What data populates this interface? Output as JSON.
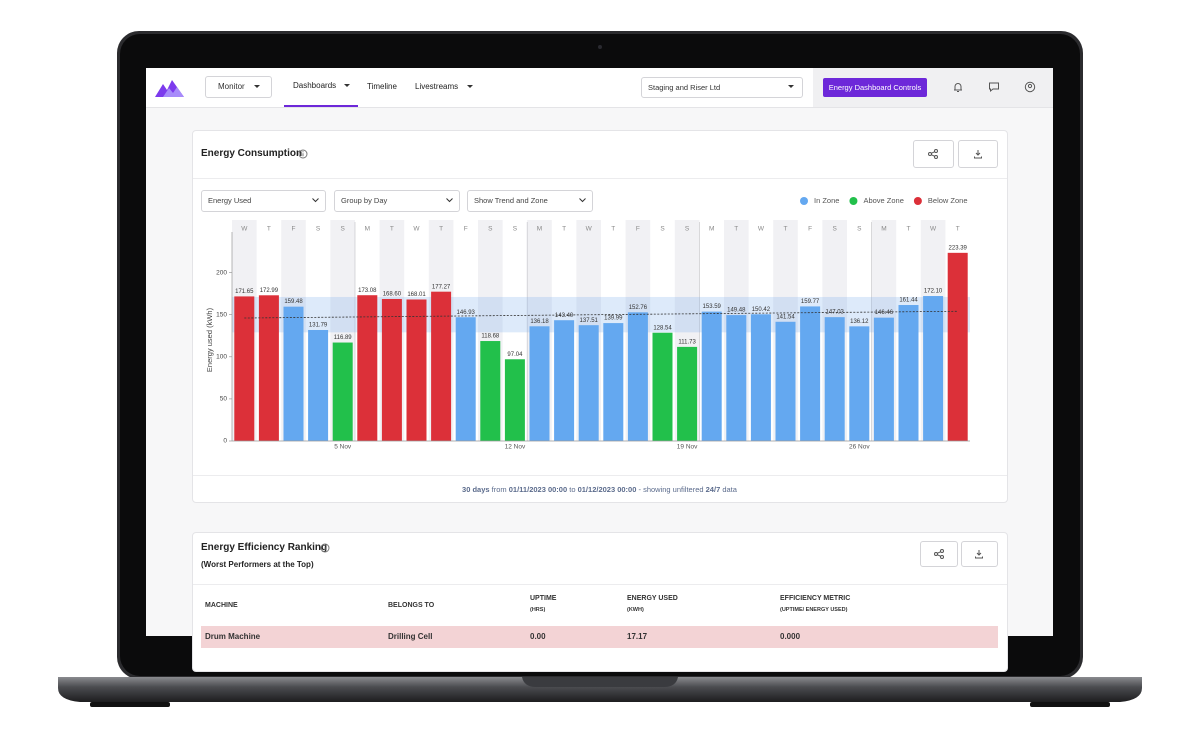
{
  "nav": {
    "monitor": "Monitor",
    "tabs": [
      "Dashboards",
      "Timeline",
      "Livestreams"
    ],
    "site": "Staging and Riser Ltd",
    "controls": "Energy Dashboard Controls"
  },
  "consumption_card": {
    "title": "Energy Consumption",
    "filters": [
      "Energy Used",
      "Group by Day",
      "Show Trend and Zone"
    ],
    "chart_data": {
      "type": "bar",
      "y_label": "Energy used (kWh)",
      "weekdays": [
        "W",
        "T",
        "F",
        "S",
        "S",
        "M",
        "T",
        "W",
        "T",
        "F",
        "S",
        "S",
        "M",
        "T",
        "W",
        "T",
        "F",
        "S",
        "S",
        "M",
        "T",
        "W",
        "T",
        "F",
        "S",
        "S",
        "M",
        "T",
        "W",
        "T"
      ],
      "categories": [
        null,
        null,
        null,
        null,
        "5 Nov",
        null,
        null,
        null,
        null,
        null,
        null,
        "12 Nov",
        null,
        null,
        null,
        null,
        null,
        null,
        "19 Nov",
        null,
        null,
        null,
        null,
        null,
        null,
        "26 Nov",
        null,
        null,
        null,
        null
      ],
      "series": [
        {
          "name": "In Zone",
          "color": "#64a8f0",
          "values": [
            null,
            null,
            159.48,
            131.79,
            null,
            null,
            null,
            null,
            null,
            146.93,
            null,
            null,
            136.18,
            143.4,
            137.51,
            139.99,
            152.76,
            null,
            null,
            153.59,
            149.48,
            150.42,
            141.54,
            159.77,
            147.03,
            136.12,
            146.46,
            161.44,
            172.1,
            null
          ],
          "value_labels": [
            null,
            null,
            "159.48",
            "131.79",
            null,
            null,
            null,
            null,
            null,
            "146.93",
            null,
            null,
            "136.18",
            "143.40",
            "137.51",
            "139.99",
            "152.76",
            null,
            null,
            "153.59",
            "149.48",
            "150.42",
            "141.54",
            "159.77",
            "147.03",
            "136.12",
            "146.46",
            "161.44",
            "172.10",
            null
          ]
        },
        {
          "name": "Above Zone",
          "color": "#22c04b",
          "values": [
            null,
            null,
            null,
            null,
            116.89,
            null,
            null,
            null,
            null,
            null,
            118.68,
            97.04,
            null,
            null,
            null,
            null,
            null,
            128.54,
            111.73,
            null,
            null,
            null,
            null,
            null,
            null,
            null,
            null,
            null,
            null,
            null
          ],
          "value_labels": [
            null,
            null,
            null,
            null,
            "116.89",
            null,
            null,
            null,
            null,
            null,
            "118.68",
            "97.04",
            null,
            null,
            null,
            null,
            null,
            "128.54",
            "111.73",
            null,
            null,
            null,
            null,
            null,
            null,
            null,
            null,
            null,
            null,
            null
          ]
        },
        {
          "name": "Below Zone",
          "color": "#dc3039",
          "values": [
            171.65,
            172.99,
            null,
            null,
            null,
            173.08,
            168.6,
            168.01,
            177.27,
            null,
            null,
            null,
            null,
            null,
            null,
            null,
            null,
            null,
            null,
            null,
            null,
            null,
            null,
            null,
            null,
            null,
            null,
            null,
            null,
            223.39
          ],
          "value_labels": [
            "171.65",
            "172.99",
            null,
            null,
            null,
            "173.08",
            "168.60",
            "168.01",
            "177.27",
            null,
            null,
            null,
            null,
            null,
            null,
            null,
            null,
            null,
            null,
            null,
            null,
            null,
            null,
            null,
            null,
            null,
            null,
            null,
            null,
            "223.39"
          ]
        }
      ],
      "ylim": [
        0,
        260
      ],
      "yticks": [
        0,
        50,
        100,
        150,
        200
      ],
      "zone": [
        129,
        171
      ],
      "trend": [
        146,
        154
      ],
      "grid": false,
      "legend": "top-right"
    },
    "footer": {
      "days": "30 days",
      "from_word": "from",
      "from": "01/11/2023 00:00",
      "to_word": "to",
      "to": "01/12/2023 00:00",
      "note": "- showing unfiltered",
      "range": "24/7",
      "end": "data"
    }
  },
  "ranking_card": {
    "title": "Energy Efficiency Ranking",
    "subtitle": "(Worst Performers at the Top)",
    "table": {
      "columns": [
        {
          "label": "MACHINE"
        },
        {
          "label": "BELONGS TO"
        },
        {
          "label": "UPTIME",
          "unit": "(HRS)"
        },
        {
          "label": "ENERGY USED",
          "unit": "(KWH)"
        },
        {
          "label": "EFFICIENCY METRIC",
          "unit": "(UPTIME/ ENERGY USED)"
        }
      ],
      "rows": [
        [
          "Drum Machine",
          "Drilling Cell",
          "0.00",
          "17.17",
          "0.000"
        ]
      ]
    }
  }
}
